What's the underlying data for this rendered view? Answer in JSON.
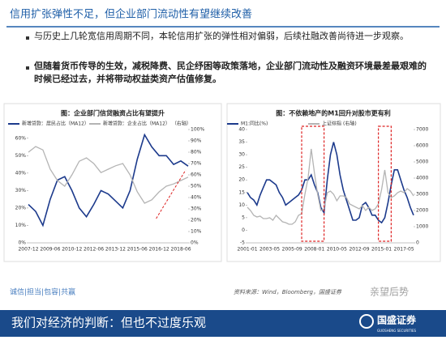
{
  "header": {
    "title": "信用扩张弹性不足，但企业部门流动性有望继续改善"
  },
  "bullets": [
    "与历史上几轮宽信用周期不同，本轮信用扩张的弹性相对偏弱，后续社融改善尚待进一步观察。",
    "但随着货币传导的生效，减税降费、民企纾困等政策落地，企业部门流动性及融资环境最差最艰难的时候已经过去，并将带动权益类资产估值修复。"
  ],
  "chart_data": [
    {
      "type": "line",
      "title": "图：企业部门信贷融资占比有望提升",
      "legend_note": "（右轴）",
      "categories": [
        "2007-12",
        null,
        null,
        "2009-06",
        null,
        null,
        "2010-12",
        null,
        null,
        "2012-06",
        null,
        null,
        "2013-12",
        null,
        null,
        "2015-06",
        null,
        null,
        "2016-12",
        null,
        null,
        "2018-06",
        null
      ],
      "series": [
        {
          "name": "新增贷款：居民占比（MA12）",
          "color": "#1c3a8c",
          "axis": "y",
          "values": [
            22,
            18,
            10,
            25,
            36,
            38,
            30,
            20,
            15,
            22,
            30,
            28,
            24,
            20,
            30,
            48,
            62,
            55,
            50,
            50,
            45,
            47,
            44
          ]
        },
        {
          "name": "新增贷款：企业占比（MA12）",
          "color": "#b4b4b4",
          "axis": "y2",
          "values": [
            80,
            85,
            82,
            65,
            55,
            50,
            60,
            72,
            75,
            70,
            62,
            65,
            68,
            70,
            60,
            45,
            35,
            38,
            45,
            50,
            52,
            55,
            58
          ]
        }
      ],
      "ylim": [
        0,
        65
      ],
      "yticks": [
        {
          "value": 0,
          "label": "0%"
        },
        {
          "value": 10,
          "label": "10%"
        },
        {
          "value": 20,
          "label": "20%"
        },
        {
          "value": 30,
          "label": "30%"
        },
        {
          "value": 40,
          "label": "40%"
        },
        {
          "value": 50,
          "label": "50%"
        },
        {
          "value": 60,
          "label": "60%"
        }
      ],
      "y2lim": [
        0,
        100
      ],
      "y2ticks": [
        {
          "value": 0,
          "label": "0%"
        },
        {
          "value": 10,
          "label": "10%"
        },
        {
          "value": 20,
          "label": "20%"
        },
        {
          "value": 30,
          "label": "30%"
        },
        {
          "value": 40,
          "label": "40%"
        },
        {
          "value": 50,
          "label": "50%"
        },
        {
          "value": 60,
          "label": "60%"
        },
        {
          "value": 70,
          "label": "70%"
        },
        {
          "value": 80,
          "label": "80%"
        },
        {
          "value": 90,
          "label": "90%"
        },
        {
          "value": 100,
          "label": "100%"
        }
      ]
    },
    {
      "type": "line",
      "title": "图：不依赖地产的M1回升对股市更有利",
      "legend_note": "(右轴)",
      "categories": [
        "2001-01",
        null,
        null,
        null,
        null,
        null,
        null,
        "2003-05",
        null,
        null,
        null,
        null,
        null,
        null,
        "2005-09",
        null,
        null,
        null,
        null,
        null,
        null,
        "2008-01",
        null,
        null,
        null,
        null,
        null,
        null,
        "2010-05",
        null,
        null,
        null,
        null,
        null,
        null,
        "2012-09",
        null,
        null,
        null,
        null,
        null,
        null,
        "2015-01",
        null,
        null,
        null,
        null,
        null,
        null,
        "2017-05",
        null,
        null,
        null
      ],
      "series": [
        {
          "name": "M1:同比(%)",
          "color": "#1c3a8c",
          "axis": "y",
          "values": [
            15,
            13,
            12,
            10,
            14,
            17,
            20,
            20,
            19,
            18,
            15,
            13,
            10,
            11,
            12,
            13,
            14,
            16,
            20,
            20,
            22,
            18,
            15,
            9,
            7,
            20,
            30,
            35,
            30,
            22,
            16,
            12,
            8,
            4,
            4,
            5,
            10,
            11,
            9,
            6,
            6,
            4,
            3,
            5,
            11,
            18,
            24,
            24,
            20,
            16,
            13,
            9,
            6
          ]
        },
        {
          "name": "上证综指",
          "color": "#b4b4b4",
          "axis": "y2",
          "values": [
            2200,
            2000,
            1700,
            1600,
            1650,
            1500,
            1500,
            1550,
            1400,
            1700,
            1500,
            1300,
            1250,
            1150,
            1150,
            1300,
            1700,
            1800,
            3000,
            4000,
            5800,
            4300,
            3000,
            2000,
            2100,
            3100,
            3200,
            3000,
            2600,
            2900,
            2900,
            2800,
            2400,
            2300,
            2200,
            2100,
            2300,
            2000,
            2200,
            2000,
            2100,
            2400,
            3300,
            4500,
            3100,
            2800,
            2900,
            3100,
            3200,
            3100,
            3350,
            3200,
            2900
          ]
        }
      ],
      "ylim": [
        -5,
        40
      ],
      "yticks": [
        -5,
        0,
        5,
        10,
        15,
        20,
        25,
        30,
        35,
        40
      ],
      "y2lim": [
        0,
        7000
      ],
      "y2ticks": [
        0,
        1000,
        2000,
        3000,
        4000,
        5000,
        6000,
        7000
      ]
    }
  ],
  "footer": {
    "motto": "诚信|担当|包容|共赢",
    "source": "资料来源：Wind，Bloomberg，国盛证券",
    "watermark": "亲望后势",
    "banner": "我们对经济的判断：但也不过度乐观",
    "logo": "国盛证券",
    "logo_en": "GUOSHENG SECURITIES"
  }
}
